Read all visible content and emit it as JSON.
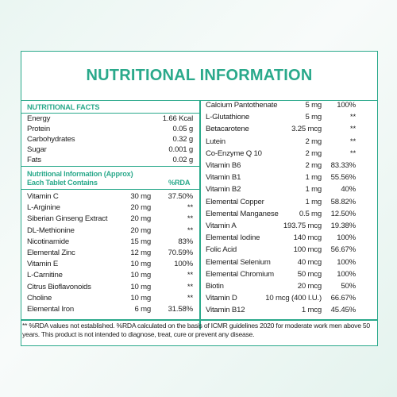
{
  "title": "NUTRITIONAL INFORMATION",
  "facts": {
    "heading": "NUTRITIONAL FACTS",
    "rows": [
      {
        "name": "Energy",
        "value": "1.66 Kcal"
      },
      {
        "name": "Protein",
        "value": "0.05 g"
      },
      {
        "name": "Carbohydrates",
        "value": "0.32 g"
      },
      {
        "name": "Sugar",
        "value": "0.001 g"
      },
      {
        "name": "Fats",
        "value": "0.02 g"
      }
    ]
  },
  "per_tablet": {
    "heading_line1": "Nutritional Information (Approx)",
    "heading_line2": "Each Tablet Contains",
    "rda_header": "%RDA",
    "rows": [
      {
        "name": "Vitamin C",
        "amount": "30 mg",
        "rda": "37.50%"
      },
      {
        "name": "L-Arginine",
        "amount": "20 mg",
        "rda": "**"
      },
      {
        "name": "Siberian Ginseng Extract",
        "amount": "20 mg",
        "rda": "**"
      },
      {
        "name": "DL-Methionine",
        "amount": "20 mg",
        "rda": "**"
      },
      {
        "name": "Nicotinamide",
        "amount": "15 mg",
        "rda": "83%"
      },
      {
        "name": "Elemental Zinc",
        "amount": "12 mg",
        "rda": "70.59%"
      },
      {
        "name": "Vitamin E",
        "amount": "10 mg",
        "rda": "100%"
      },
      {
        "name": "L-Carnitine",
        "amount": "10 mg",
        "rda": "**"
      },
      {
        "name": "Citrus Bioflavonoids",
        "amount": "10 mg",
        "rda": "**"
      },
      {
        "name": "Choline",
        "amount": "10 mg",
        "rda": "**"
      },
      {
        "name": "Elemental Iron",
        "amount": "6 mg",
        "rda": "31.58%"
      }
    ]
  },
  "right": {
    "rows": [
      {
        "name": "Calcium Pantothenate",
        "amount": "5 mg",
        "rda": "100%"
      },
      {
        "name": "L-Glutathione",
        "amount": "5 mg",
        "rda": "**"
      },
      {
        "name": "Betacarotene",
        "amount": "3.25 mcg",
        "rda": "**"
      },
      {
        "name": "Lutein",
        "amount": "2 mg",
        "rda": "**"
      },
      {
        "name": "Co-Enzyme Q 10",
        "amount": "2 mg",
        "rda": "**"
      },
      {
        "name": "Vitamin B6",
        "amount": "2 mg",
        "rda": "83.33%"
      },
      {
        "name": "Vitamin B1",
        "amount": "1 mg",
        "rda": "55.56%"
      },
      {
        "name": "Vitamin B2",
        "amount": "1 mg",
        "rda": "40%"
      },
      {
        "name": "Elemental Copper",
        "amount": "1 mg",
        "rda": "58.82%"
      },
      {
        "name": "Elemental Manganese",
        "amount": "0.5 mg",
        "rda": "12.50%"
      },
      {
        "name": "Vitamin A",
        "amount": "193.75 mcg",
        "rda": "19.38%"
      },
      {
        "name": "Elemental Iodine",
        "amount": "140 mcg",
        "rda": "100%"
      },
      {
        "name": "Folic Acid",
        "amount": "100 mcg",
        "rda": "56.67%"
      },
      {
        "name": "Elemental Selenium",
        "amount": "40 mcg",
        "rda": "100%"
      },
      {
        "name": "Elemental Chromium",
        "amount": "50 mcg",
        "rda": "100%"
      },
      {
        "name": "Biotin",
        "amount": "20 mcg",
        "rda": "50%"
      },
      {
        "name": "Vitamin D",
        "amount": "10 mcg (400 I.U.)",
        "rda": "66.67%"
      },
      {
        "name": "Vitamin B12",
        "amount": "1 mcg",
        "rda": "45.45%"
      }
    ]
  },
  "footnote": "** %RDA values not established. %RDA calculated on the basis of ICMR guidelines 2020 for moderate work men above 50 years. This product is not intended to diagnose, treat, cure or prevent any disease.",
  "colors": {
    "accent": "#2aa98b",
    "text": "#222222"
  }
}
